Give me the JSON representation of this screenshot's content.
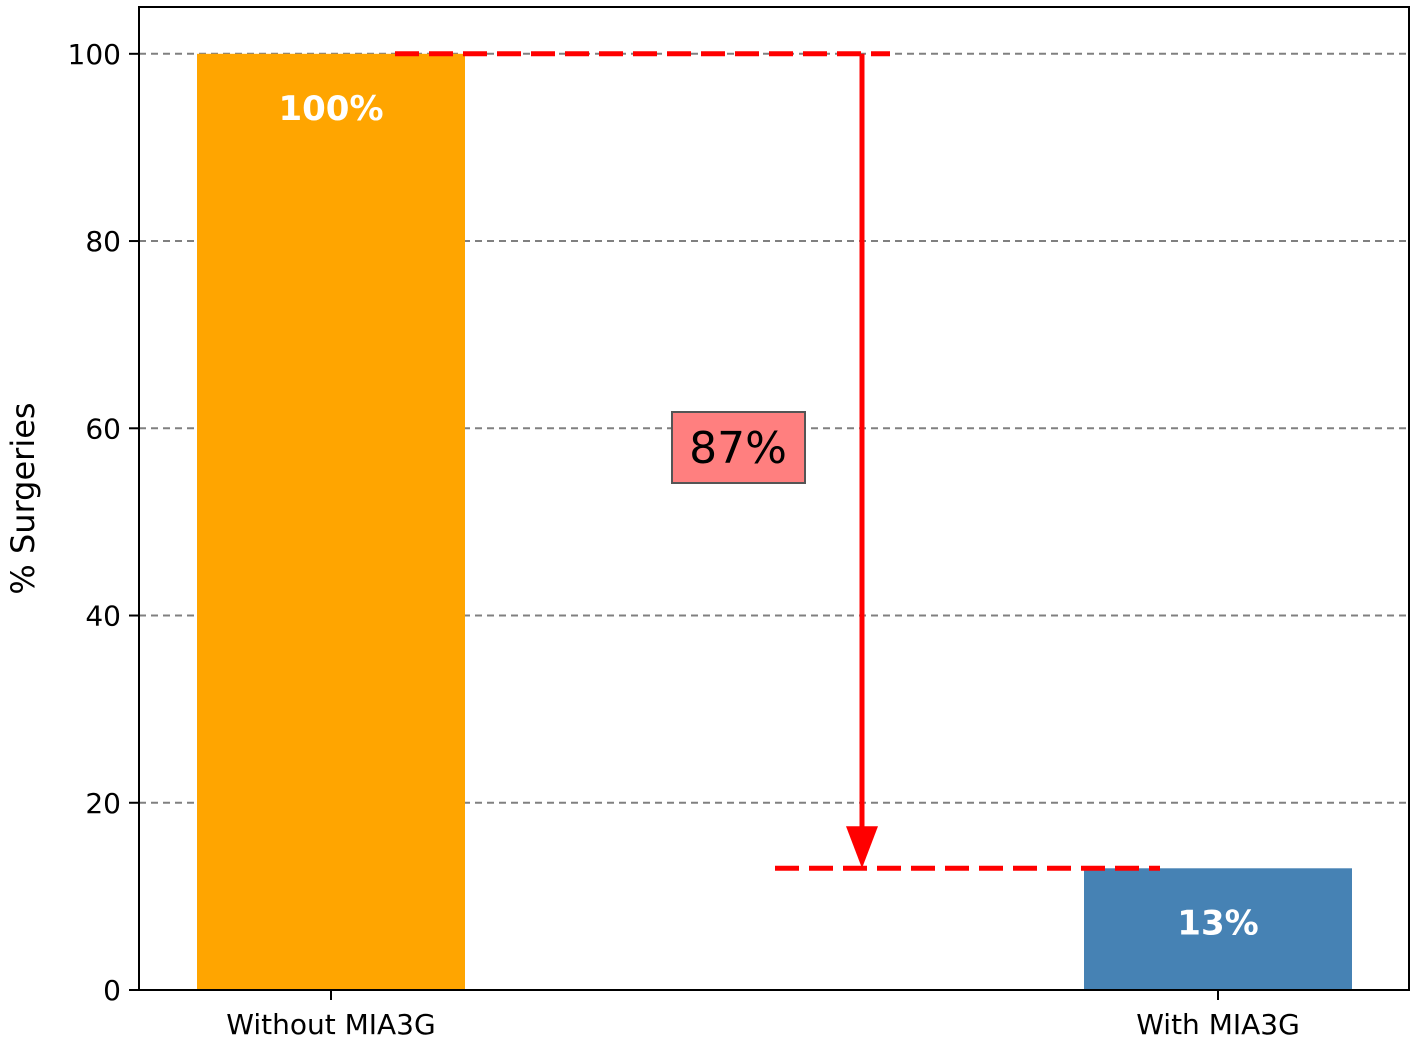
{
  "chart_data": {
    "type": "bar",
    "categories": [
      "Without MIA3G",
      "With MIA3G"
    ],
    "values": [
      100,
      13
    ],
    "bar_labels": [
      "100%",
      "13%"
    ],
    "colors": [
      "#ffa500",
      "#4682b4"
    ],
    "xlabel": "",
    "ylabel": "% Surgeries",
    "ylim": [
      0,
      105
    ],
    "yticks": [
      0,
      20,
      40,
      60,
      80,
      100
    ],
    "grid": "y-dashed",
    "annotation": {
      "text": "87%",
      "from_value": 100,
      "to_value": 13,
      "line_color": "#ff0000",
      "box_color": "#ff7f7f"
    }
  }
}
